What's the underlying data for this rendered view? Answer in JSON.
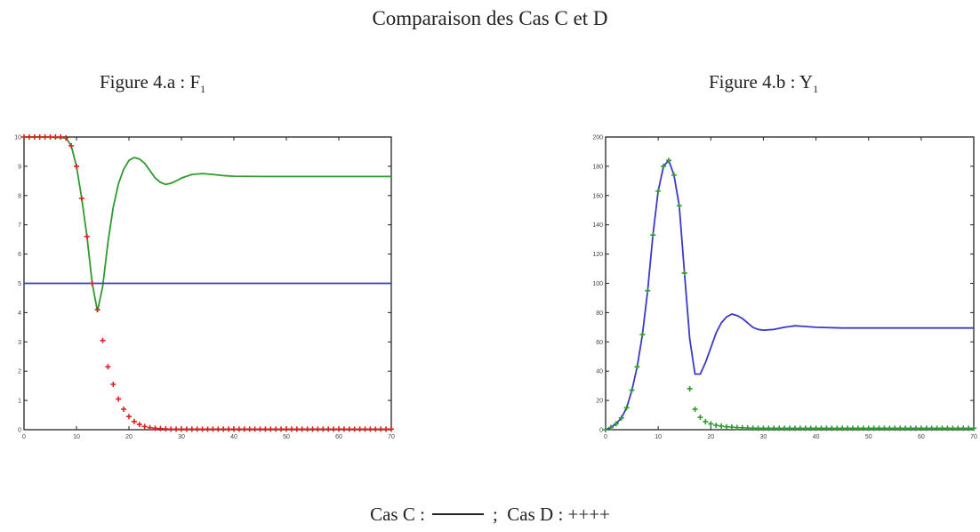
{
  "title": "Comparaison des Cas C et D",
  "legend": {
    "cas_c_label": "Cas C :",
    "separator": ";",
    "cas_d_label": "Cas D : ++++"
  },
  "chart_data": [
    {
      "type": "line",
      "title": "Figure 4.a : F",
      "title_subscript": "1",
      "xlim": [
        0,
        70
      ],
      "ylim": [
        0,
        10
      ],
      "xticks": [
        0,
        10,
        20,
        30,
        40,
        50,
        60,
        70
      ],
      "yticks": [
        0,
        1,
        2,
        3,
        4,
        5,
        6,
        7,
        8,
        9,
        10
      ],
      "grid": false,
      "series": [
        {
          "marker": "line",
          "color": "#2f9a2f",
          "x": [
            0,
            4,
            8,
            9,
            10,
            11,
            12,
            13,
            14,
            15,
            16,
            17,
            18,
            19,
            20,
            21,
            22,
            23,
            24,
            25,
            26,
            27,
            28,
            29,
            30,
            32,
            34,
            36,
            38,
            40,
            45,
            50,
            60,
            70
          ],
          "y": [
            10,
            10,
            9.97,
            9.7,
            9.0,
            7.9,
            6.6,
            5.0,
            4.05,
            4.9,
            6.4,
            7.6,
            8.4,
            8.9,
            9.2,
            9.3,
            9.25,
            9.1,
            8.85,
            8.6,
            8.45,
            8.38,
            8.42,
            8.5,
            8.6,
            8.72,
            8.75,
            8.72,
            8.68,
            8.66,
            8.65,
            8.65,
            8.65,
            8.65
          ]
        },
        {
          "marker": "line",
          "color": "#3a3ac8",
          "x": [
            0,
            70
          ],
          "y": [
            5.0,
            5.0
          ]
        },
        {
          "marker": "plus",
          "color": "#e02020",
          "x": [
            0,
            1,
            2,
            3,
            4,
            5,
            6,
            7,
            8,
            9,
            10,
            11,
            12,
            13,
            14,
            15,
            16,
            17,
            18,
            19,
            20,
            21,
            22,
            23,
            24,
            25,
            26,
            27,
            28,
            29,
            30,
            31,
            32,
            33,
            34,
            35,
            36,
            37,
            38,
            39,
            40,
            41,
            42,
            43,
            44,
            45,
            46,
            47,
            48,
            49,
            50,
            51,
            52,
            53,
            54,
            55,
            56,
            57,
            58,
            59,
            60,
            61,
            62,
            63,
            64,
            65,
            66,
            67,
            68,
            69,
            70
          ],
          "y": [
            10,
            10,
            10,
            10,
            10,
            10,
            10,
            10,
            9.97,
            9.7,
            9.0,
            7.9,
            6.6,
            5.0,
            4.1,
            3.05,
            2.15,
            1.55,
            1.05,
            0.7,
            0.45,
            0.28,
            0.18,
            0.11,
            0.07,
            0.05,
            0.04,
            0.03,
            0.02,
            0.02,
            0.02,
            0.02,
            0.02,
            0.02,
            0.02,
            0.02,
            0.02,
            0.02,
            0.02,
            0.02,
            0.02,
            0.02,
            0.02,
            0.02,
            0.02,
            0.02,
            0.02,
            0.02,
            0.02,
            0.02,
            0.02,
            0.02,
            0.02,
            0.02,
            0.02,
            0.02,
            0.02,
            0.02,
            0.02,
            0.02,
            0.02,
            0.02,
            0.02,
            0.02,
            0.02,
            0.02,
            0.02,
            0.02,
            0.02,
            0.02,
            0.02
          ]
        }
      ]
    },
    {
      "type": "line",
      "title": "Figure 4.b : Y",
      "title_subscript": "1",
      "xlim": [
        0,
        70
      ],
      "ylim": [
        0,
        200
      ],
      "xticks": [
        0,
        10,
        20,
        30,
        40,
        50,
        60,
        70
      ],
      "yticks": [
        0,
        20,
        40,
        60,
        80,
        100,
        120,
        140,
        160,
        180,
        200
      ],
      "grid": false,
      "series": [
        {
          "marker": "line",
          "color": "#3a3ac8",
          "x": [
            0,
            1,
            2,
            3,
            4,
            5,
            6,
            7,
            8,
            9,
            10,
            11,
            12,
            13,
            14,
            15,
            16,
            17,
            18,
            19,
            20,
            21,
            22,
            23,
            24,
            25,
            26,
            27,
            28,
            29,
            30,
            32,
            34,
            36,
            38,
            40,
            45,
            50,
            60,
            70
          ],
          "y": [
            0,
            1.5,
            4,
            8,
            15,
            27,
            43,
            65,
            95,
            133,
            163,
            180,
            184,
            174,
            153,
            107,
            62,
            38,
            38,
            46,
            56,
            66,
            73,
            77,
            79,
            78,
            76,
            73,
            70,
            68.5,
            68,
            68.5,
            70,
            71,
            70.5,
            70,
            69.5,
            69.5,
            69.5,
            69.5
          ]
        },
        {
          "marker": "plus",
          "color": "#2f9a2f",
          "x": [
            0,
            1,
            2,
            3,
            4,
            5,
            6,
            7,
            8,
            9,
            10,
            11,
            12,
            13,
            14,
            15,
            16,
            17,
            18,
            19,
            20,
            21,
            22,
            23,
            24,
            25,
            26,
            27,
            28,
            29,
            30,
            31,
            32,
            33,
            34,
            35,
            36,
            37,
            38,
            39,
            40,
            41,
            42,
            43,
            44,
            45,
            46,
            47,
            48,
            49,
            50,
            51,
            52,
            53,
            54,
            55,
            56,
            57,
            58,
            59,
            60,
            61,
            62,
            63,
            64,
            65,
            66,
            67,
            68,
            69,
            70
          ],
          "y": [
            0,
            1.5,
            4,
            8,
            15,
            27,
            43,
            65,
            95,
            133,
            163,
            180,
            184,
            174,
            153,
            107,
            28,
            14,
            8.5,
            5.5,
            4,
            3,
            2.5,
            2,
            1.8,
            1.5,
            1.3,
            1.2,
            1.1,
            1,
            1,
            1,
            1,
            1,
            1,
            1,
            1,
            1,
            1,
            1,
            1,
            1,
            1,
            1,
            1,
            1,
            1,
            1,
            1,
            1,
            1,
            1,
            1,
            1,
            1,
            1,
            1,
            1,
            1,
            1,
            1,
            1,
            1,
            1,
            1,
            1,
            1,
            1,
            1,
            1,
            1
          ]
        }
      ]
    }
  ]
}
